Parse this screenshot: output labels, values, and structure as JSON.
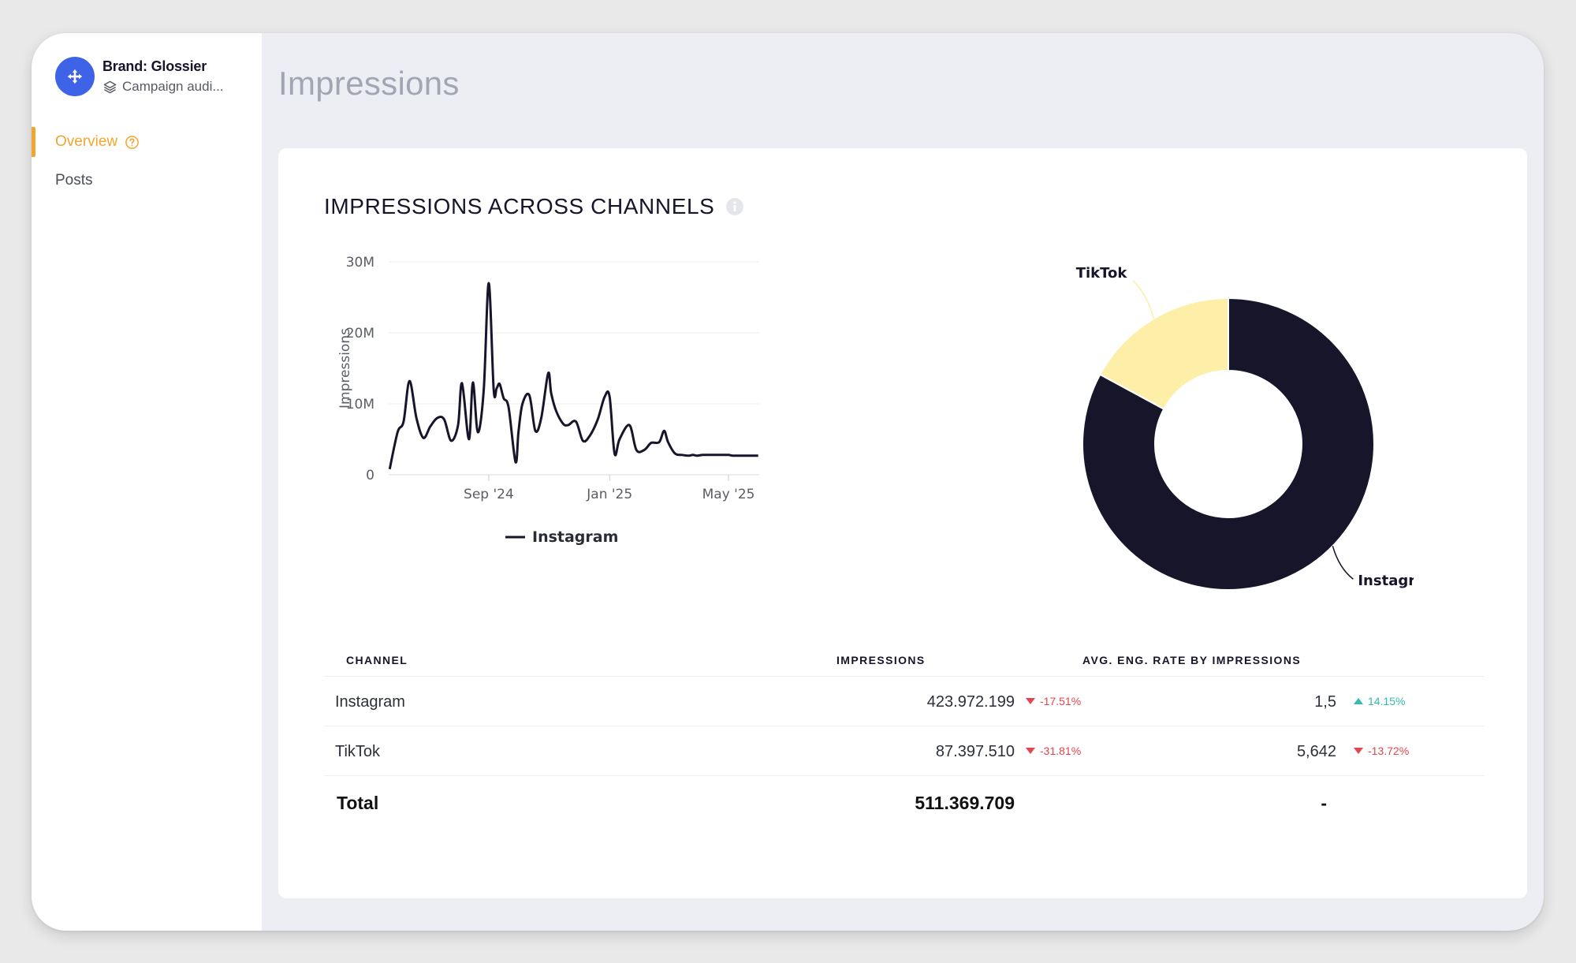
{
  "brand": {
    "name": "Brand: Glossier",
    "campaign": "Campaign audi..."
  },
  "nav": {
    "overview": "Overview",
    "posts": "Posts"
  },
  "page": {
    "title": "Impressions"
  },
  "card": {
    "title": "IMPRESSIONS ACROSS CHANNELS"
  },
  "colors": {
    "accent": "#f2a52f",
    "brand_avatar": "#3f63e6",
    "instagram": "#16152a",
    "tiktok": "#fdeea8",
    "negative": "#e0464f",
    "positive": "#35b9ae"
  },
  "chart_data": [
    {
      "type": "line",
      "ylabel": "Impressions",
      "ylim": [
        0,
        30000000
      ],
      "y_ticks": [
        "0",
        "10M",
        "20M",
        "30M"
      ],
      "y_tick_values": [
        0,
        10000000,
        20000000,
        30000000
      ],
      "x_ticks": [
        "Sep '24",
        "Jan '25",
        "May '25"
      ],
      "x_tick_values": [
        "2024-09-01",
        "2025-01-01",
        "2025-05-01"
      ],
      "x_range": [
        "2024-05-23",
        "2025-06-01"
      ],
      "grid": true,
      "legend": "bottom",
      "series": [
        {
          "name": "Instagram",
          "x": [
            "2024-05-24",
            "2024-06-01",
            "2024-06-07",
            "2024-06-13",
            "2024-06-20",
            "2024-06-27",
            "2024-07-04",
            "2024-07-11",
            "2024-07-18",
            "2024-07-25",
            "2024-08-01",
            "2024-08-05",
            "2024-08-12",
            "2024-08-16",
            "2024-08-21",
            "2024-08-27",
            "2024-09-01",
            "2024-09-06",
            "2024-09-09",
            "2024-09-12",
            "2024-09-16",
            "2024-09-21",
            "2024-09-28",
            "2024-10-01",
            "2024-10-05",
            "2024-10-12",
            "2024-10-18",
            "2024-10-24",
            "2024-10-31",
            "2024-11-03",
            "2024-11-08",
            "2024-11-15",
            "2024-11-20",
            "2024-11-28",
            "2024-12-05",
            "2024-12-12",
            "2024-12-20",
            "2024-12-27",
            "2025-01-01",
            "2025-01-06",
            "2025-01-11",
            "2025-01-21",
            "2025-01-28",
            "2025-02-05",
            "2025-02-12",
            "2025-02-20",
            "2025-02-25",
            "2025-03-01",
            "2025-03-08",
            "2025-03-15",
            "2025-03-22",
            "2025-03-26",
            "2025-03-30",
            "2025-04-05",
            "2025-04-10",
            "2025-04-14",
            "2025-04-18",
            "2025-04-25",
            "2025-05-01",
            "2025-05-05",
            "2025-05-09",
            "2025-05-15",
            "2025-05-22",
            "2025-05-31"
          ],
          "values": [
            800000,
            6000000,
            7500000,
            13200000,
            8000000,
            5200000,
            6800000,
            8000000,
            7800000,
            4800000,
            7000000,
            12900000,
            5000000,
            13000000,
            6000000,
            12000000,
            27000000,
            12000000,
            12200000,
            12800000,
            10800000,
            9500000,
            1800000,
            6000000,
            10000000,
            11200000,
            6200000,
            8000000,
            14300000,
            11500000,
            9000000,
            7200000,
            7000000,
            7500000,
            4800000,
            5500000,
            7800000,
            11000000,
            11000000,
            3000000,
            5000000,
            7000000,
            3500000,
            3500000,
            4500000,
            4600000,
            6200000,
            4600000,
            3000000,
            2800000,
            2700000,
            2800000,
            2700000,
            2800000,
            2800000,
            2800000,
            2800000,
            2800000,
            2800000,
            2700000,
            2700000,
            2700000,
            2700000,
            2700000
          ]
        }
      ]
    },
    {
      "type": "pie",
      "style": "donut",
      "labels": [
        "Instagram",
        "TikTok"
      ],
      "values": [
        423972199,
        87397510
      ]
    }
  ],
  "table": {
    "headers": {
      "channel": "CHANNEL",
      "impressions": "IMPRESSIONS",
      "avg_eng": "AVG. ENG. RATE BY IMPRESSIONS"
    },
    "rows": [
      {
        "channel": "Instagram",
        "impressions": "423.972.199",
        "impressions_delta": "-17.51%",
        "impressions_trend": "down",
        "eng_rate": "1,5",
        "eng_delta": "14.15%",
        "eng_trend": "up"
      },
      {
        "channel": "TikTok",
        "impressions": "87.397.510",
        "impressions_delta": "-31.81%",
        "impressions_trend": "down",
        "eng_rate": "5,642",
        "eng_delta": "-13.72%",
        "eng_trend": "down"
      }
    ],
    "total": {
      "label": "Total",
      "impressions": "511.369.709",
      "eng_rate": "-"
    }
  }
}
